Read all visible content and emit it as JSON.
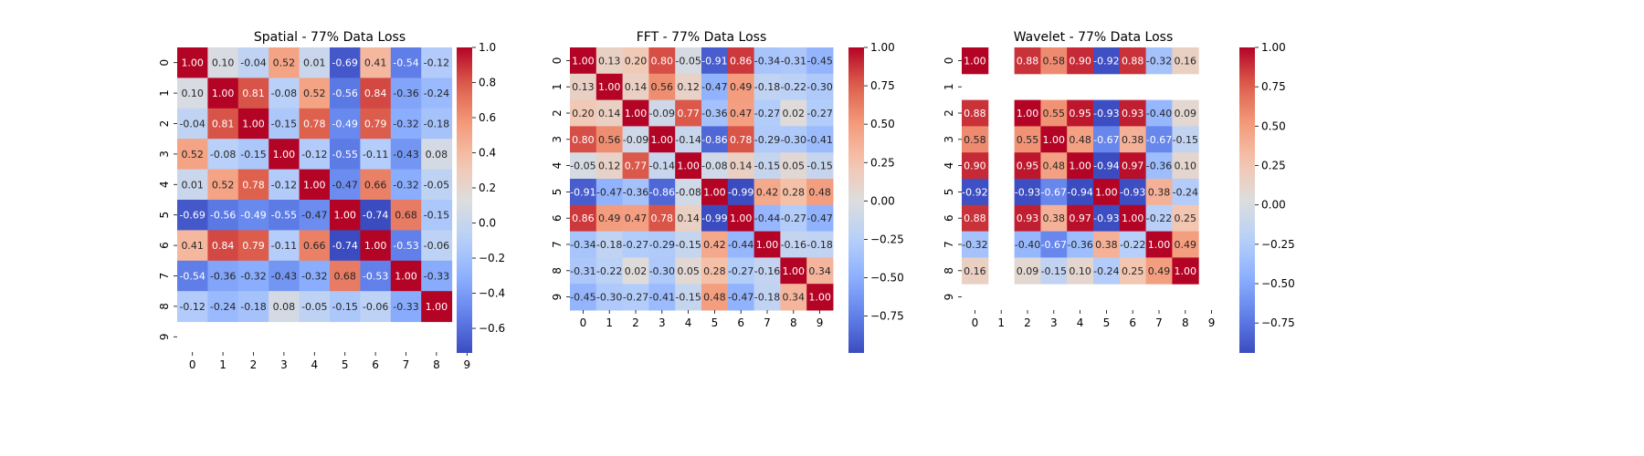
{
  "chart_data": [
    {
      "type": "heatmap",
      "title": "Spatial - 77% Data Loss",
      "xlabel": "",
      "ylabel": "",
      "x_ticks": [
        "0",
        "1",
        "2",
        "3",
        "4",
        "5",
        "6",
        "7",
        "8",
        "9"
      ],
      "y_ticks": [
        "0",
        "1",
        "2",
        "3",
        "4",
        "5",
        "6",
        "7",
        "8",
        "9"
      ],
      "colorbar": {
        "vmin": -0.74,
        "vmax": 1.0,
        "ticks": [
          -0.6,
          -0.4,
          -0.2,
          0.0,
          0.2,
          0.4,
          0.6,
          0.8,
          1.0
        ],
        "tick_labels": [
          "−0.6",
          "−0.4",
          "−0.2",
          "0.0",
          "0.2",
          "0.4",
          "0.6",
          "0.8",
          "1.0"
        ]
      },
      "matrix": [
        [
          1.0,
          0.1,
          -0.04,
          0.52,
          0.01,
          -0.69,
          0.41,
          -0.54,
          -0.12,
          null
        ],
        [
          0.1,
          1.0,
          0.81,
          -0.08,
          0.52,
          -0.56,
          0.84,
          -0.36,
          -0.24,
          null
        ],
        [
          -0.04,
          0.81,
          1.0,
          -0.15,
          0.78,
          -0.49,
          0.79,
          -0.32,
          -0.18,
          null
        ],
        [
          0.52,
          -0.08,
          -0.15,
          1.0,
          -0.12,
          -0.55,
          -0.11,
          -0.43,
          0.08,
          null
        ],
        [
          0.01,
          0.52,
          0.78,
          -0.12,
          1.0,
          -0.47,
          0.66,
          -0.32,
          -0.05,
          null
        ],
        [
          -0.69,
          -0.56,
          -0.49,
          -0.55,
          -0.47,
          1.0,
          -0.74,
          0.68,
          -0.15,
          null
        ],
        [
          0.41,
          0.84,
          0.79,
          -0.11,
          0.66,
          -0.74,
          1.0,
          -0.53,
          -0.06,
          null
        ],
        [
          -0.54,
          -0.36,
          -0.32,
          -0.43,
          -0.32,
          0.68,
          -0.53,
          1.0,
          -0.33,
          null
        ],
        [
          -0.12,
          -0.24,
          -0.18,
          0.08,
          -0.05,
          -0.15,
          -0.06,
          -0.33,
          1.0,
          null
        ],
        [
          null,
          null,
          null,
          null,
          null,
          null,
          null,
          null,
          null,
          null
        ]
      ]
    },
    {
      "type": "heatmap",
      "title": "FFT - 77% Data Loss",
      "xlabel": "",
      "ylabel": "",
      "x_ticks": [
        "0",
        "1",
        "2",
        "3",
        "4",
        "5",
        "6",
        "7",
        "8",
        "9"
      ],
      "y_ticks": [
        "0",
        "1",
        "2",
        "3",
        "4",
        "5",
        "6",
        "7",
        "8",
        "9"
      ],
      "colorbar": {
        "vmin": -0.99,
        "vmax": 1.0,
        "ticks": [
          -0.75,
          -0.5,
          -0.25,
          0.0,
          0.25,
          0.5,
          0.75,
          1.0
        ],
        "tick_labels": [
          "−0.75",
          "−0.50",
          "−0.25",
          "0.00",
          "0.25",
          "0.50",
          "0.75",
          "1.00"
        ]
      },
      "matrix": [
        [
          1.0,
          0.13,
          0.2,
          0.8,
          -0.05,
          -0.91,
          0.86,
          -0.34,
          -0.31,
          -0.45
        ],
        [
          0.13,
          1.0,
          0.14,
          0.56,
          0.12,
          -0.47,
          0.49,
          -0.18,
          -0.22,
          -0.3
        ],
        [
          0.2,
          0.14,
          1.0,
          -0.09,
          0.77,
          -0.36,
          0.47,
          -0.27,
          0.02,
          -0.27
        ],
        [
          0.8,
          0.56,
          -0.09,
          1.0,
          -0.14,
          -0.86,
          0.78,
          -0.29,
          -0.3,
          -0.41
        ],
        [
          -0.05,
          0.12,
          0.77,
          -0.14,
          1.0,
          -0.08,
          0.14,
          -0.15,
          0.05,
          -0.15
        ],
        [
          -0.91,
          -0.47,
          -0.36,
          -0.86,
          -0.08,
          1.0,
          -0.99,
          0.42,
          0.28,
          0.48
        ],
        [
          0.86,
          0.49,
          0.47,
          0.78,
          0.14,
          -0.99,
          1.0,
          -0.44,
          -0.27,
          -0.47
        ],
        [
          -0.34,
          -0.18,
          -0.27,
          -0.29,
          -0.15,
          0.42,
          -0.44,
          1.0,
          -0.16,
          -0.18
        ],
        [
          -0.31,
          -0.22,
          0.02,
          -0.3,
          0.05,
          0.28,
          -0.27,
          -0.16,
          1.0,
          0.34
        ],
        [
          -0.45,
          -0.3,
          -0.27,
          -0.41,
          -0.15,
          0.48,
          -0.47,
          -0.18,
          0.34,
          1.0
        ]
      ]
    },
    {
      "type": "heatmap",
      "title": "Wavelet - 77% Data Loss",
      "xlabel": "",
      "ylabel": "",
      "x_ticks": [
        "0",
        "1",
        "2",
        "3",
        "4",
        "5",
        "6",
        "7",
        "8",
        "9"
      ],
      "y_ticks": [
        "0",
        "1",
        "2",
        "3",
        "4",
        "5",
        "6",
        "7",
        "8",
        "9"
      ],
      "colorbar": {
        "vmin": -0.94,
        "vmax": 1.0,
        "ticks": [
          -0.75,
          -0.5,
          -0.25,
          0.0,
          0.25,
          0.5,
          0.75,
          1.0
        ],
        "tick_labels": [
          "−0.75",
          "−0.50",
          "−0.25",
          "0.00",
          "0.25",
          "0.50",
          "0.75",
          "1.00"
        ]
      },
      "matrix": [
        [
          1.0,
          null,
          0.88,
          0.58,
          0.9,
          -0.92,
          0.88,
          -0.32,
          0.16,
          null
        ],
        [
          null,
          null,
          null,
          null,
          null,
          null,
          null,
          null,
          null,
          null
        ],
        [
          0.88,
          null,
          1.0,
          0.55,
          0.95,
          -0.93,
          0.93,
          -0.4,
          0.09,
          null
        ],
        [
          0.58,
          null,
          0.55,
          1.0,
          0.48,
          -0.67,
          0.38,
          -0.67,
          -0.15,
          null
        ],
        [
          0.9,
          null,
          0.95,
          0.48,
          1.0,
          -0.94,
          0.97,
          -0.36,
          0.1,
          null
        ],
        [
          -0.92,
          null,
          -0.93,
          -0.67,
          -0.94,
          1.0,
          -0.93,
          0.38,
          -0.24,
          null
        ],
        [
          0.88,
          null,
          0.93,
          0.38,
          0.97,
          -0.93,
          1.0,
          -0.22,
          0.25,
          null
        ],
        [
          -0.32,
          null,
          -0.4,
          -0.67,
          -0.36,
          0.38,
          -0.22,
          1.0,
          0.49,
          null
        ],
        [
          0.16,
          null,
          0.09,
          -0.15,
          0.1,
          -0.24,
          0.25,
          0.49,
          1.0,
          null
        ],
        [
          null,
          null,
          null,
          null,
          null,
          null,
          null,
          null,
          null,
          null
        ]
      ]
    }
  ]
}
